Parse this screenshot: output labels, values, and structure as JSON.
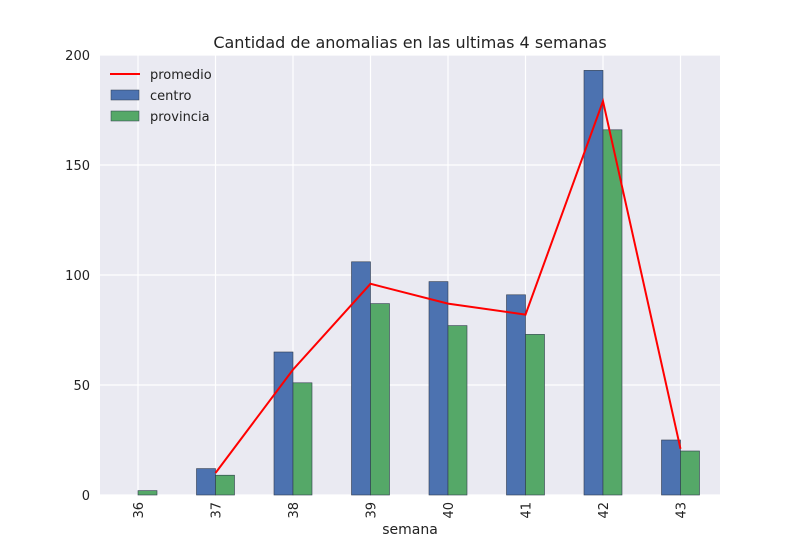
{
  "chart_data": {
    "type": "bar",
    "title": "Cantidad de anomalias en las ultimas 4 semanas",
    "xlabel": "semana",
    "ylabel": "",
    "categories": [
      "36",
      "37",
      "38",
      "39",
      "40",
      "41",
      "42",
      "43"
    ],
    "ylim": [
      0,
      200
    ],
    "yticks": [
      0,
      50,
      100,
      150,
      200
    ],
    "grid": true,
    "legend_position": "top-left",
    "series": [
      {
        "name": "centro",
        "type": "bar",
        "color": "#4c72b0",
        "values": [
          0,
          12,
          65,
          106,
          97,
          91,
          193,
          25
        ]
      },
      {
        "name": "provincia",
        "type": "bar",
        "color": "#55a868",
        "values": [
          2,
          9,
          51,
          87,
          77,
          73,
          166,
          20
        ]
      },
      {
        "name": "promedio",
        "type": "line",
        "color": "#ff0000",
        "values": [
          null,
          10,
          57,
          96,
          87,
          82,
          179,
          21
        ]
      }
    ]
  }
}
